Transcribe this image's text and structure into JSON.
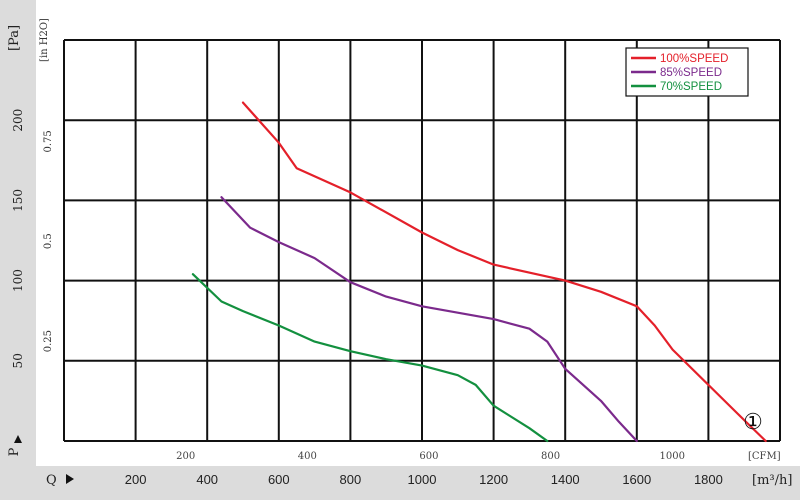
{
  "chart_data": {
    "type": "line",
    "y_axis_label": "P",
    "y_unit_pa": "[Pa]",
    "y_unit_inh2o": "[in H2O]",
    "x_axis_label": "Q",
    "x_unit_cfm": "[CFM]",
    "x_unit_m3h": "[m³/h]",
    "curve_marker": "①",
    "x_range_m3h": [
      0,
      2000
    ],
    "y_range_pa": [
      0,
      250
    ],
    "grid": true,
    "legend_position": "top-right",
    "y_ticks_pa": [
      "50",
      "100",
      "150",
      "200"
    ],
    "y_ticks_inh2o": [
      "0.25",
      "0.5",
      "0.75"
    ],
    "x_ticks_cfm": [
      "200",
      "400",
      "600",
      "800",
      "1000"
    ],
    "x_ticks_m3h": [
      "200",
      "400",
      "600",
      "800",
      "1000",
      "1200",
      "1400",
      "1600",
      "1800"
    ],
    "series": [
      {
        "name": "100%SPEED",
        "color": "#e4202a",
        "points": [
          [
            500,
            211
          ],
          [
            600,
            186
          ],
          [
            650,
            170
          ],
          [
            800,
            155
          ],
          [
            1000,
            130
          ],
          [
            1100,
            119
          ],
          [
            1200,
            110
          ],
          [
            1400,
            100
          ],
          [
            1500,
            93
          ],
          [
            1600,
            84
          ],
          [
            1650,
            72
          ],
          [
            1700,
            57
          ],
          [
            1800,
            35
          ],
          [
            1900,
            13
          ],
          [
            1960,
            0
          ]
        ]
      },
      {
        "name": "85%SPEED",
        "color": "#7b2a8c",
        "points": [
          [
            440,
            152
          ],
          [
            520,
            133
          ],
          [
            600,
            124
          ],
          [
            700,
            114
          ],
          [
            800,
            99
          ],
          [
            900,
            90
          ],
          [
            1000,
            84
          ],
          [
            1200,
            76
          ],
          [
            1300,
            70
          ],
          [
            1350,
            62
          ],
          [
            1400,
            45
          ],
          [
            1500,
            25
          ],
          [
            1550,
            12
          ],
          [
            1600,
            0
          ]
        ]
      },
      {
        "name": "70%SPEED",
        "color": "#13903f",
        "points": [
          [
            360,
            104
          ],
          [
            440,
            87
          ],
          [
            500,
            81
          ],
          [
            600,
            72
          ],
          [
            700,
            62
          ],
          [
            800,
            56
          ],
          [
            900,
            51
          ],
          [
            1000,
            47
          ],
          [
            1100,
            41
          ],
          [
            1150,
            35
          ],
          [
            1200,
            22
          ],
          [
            1300,
            8
          ],
          [
            1350,
            0
          ]
        ]
      }
    ]
  }
}
